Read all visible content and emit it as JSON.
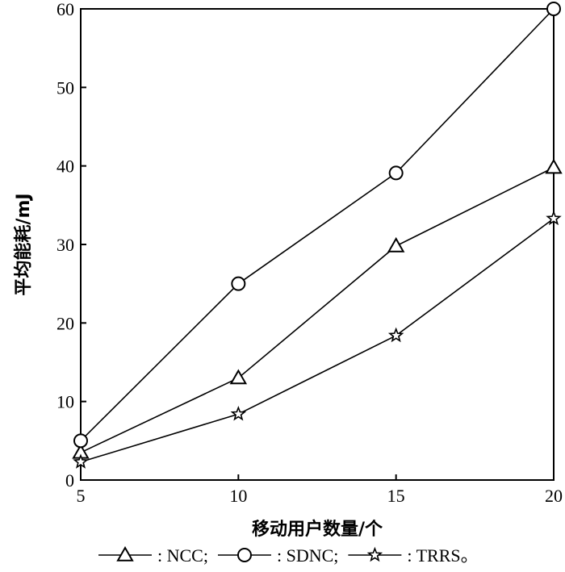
{
  "chart_data": {
    "type": "line",
    "x": [
      5,
      10,
      15,
      20
    ],
    "xticks": [
      "5",
      "10",
      "15",
      "20"
    ],
    "yticks": [
      "0",
      "10",
      "20",
      "30",
      "40",
      "50",
      "60"
    ],
    "xlim": [
      5,
      20
    ],
    "ylim": [
      0,
      60
    ],
    "xlabel": "移动用户数量/个",
    "ylabel": "平均能耗/mJ",
    "grid": false,
    "legend_position": "bottom",
    "series": [
      {
        "name": "NCC",
        "marker": "triangle",
        "values": [
          3.5,
          13,
          29.8,
          39.8
        ]
      },
      {
        "name": "SDNC",
        "marker": "circle",
        "values": [
          5,
          25,
          39.1,
          60
        ]
      },
      {
        "name": "TRRS",
        "marker": "star",
        "values": [
          2.3,
          8.4,
          18.4,
          33.3
        ]
      }
    ],
    "legend": [
      {
        "series": "NCC",
        "text": "NCC;"
      },
      {
        "series": "SDNC",
        "text": "SDNC;"
      },
      {
        "series": "TRRS",
        "text": "TRRS。"
      }
    ],
    "legend_separator": ":",
    "line_color": "#000000"
  }
}
